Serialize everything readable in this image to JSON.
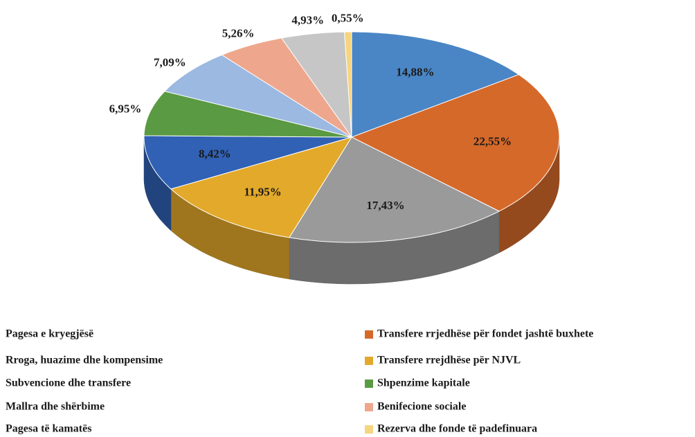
{
  "chart_data": {
    "type": "pie3d",
    "series": [
      {
        "name": "Pagesa  e kryegjësë",
        "color": "#4a86c5",
        "values": [
          14.88
        ],
        "value_labels": [
          "14,88%"
        ]
      },
      {
        "name": "Transfere rrjedhëse për fondet jashtë buxhete",
        "color": "#d5692a",
        "values": [
          22.55
        ],
        "value_labels": [
          "22,55%"
        ]
      },
      {
        "name": "Rroga, huazime dhe kompensime",
        "color": "#9a9a9a",
        "values": [
          17.43
        ],
        "value_labels": [
          "17,43%"
        ]
      },
      {
        "name": "Transfere rrejdhëse për NJVL",
        "color": "#e3a92b",
        "values": [
          11.95
        ],
        "value_labels": [
          "11,95%"
        ]
      },
      {
        "name": "Subvencione dhe transfere",
        "color": "#3061b4",
        "values": [
          8.42
        ],
        "value_labels": [
          "8,42%"
        ]
      },
      {
        "name": "Shpenzime kapitale",
        "color": "#5a9a42",
        "values": [
          6.95
        ],
        "value_labels": [
          "6,95%"
        ]
      },
      {
        "name": "Mallra dhe shërbime",
        "color": "#9bb9e1",
        "values": [
          7.09
        ],
        "value_labels": [
          "7,09%"
        ]
      },
      {
        "name": "Benifecione sociale",
        "color": "#eea78d",
        "values": [
          5.26
        ],
        "value_labels": [
          "5,26%"
        ]
      },
      {
        "name": "Pagesa të kamatës",
        "color": "#c6c6c6",
        "values": [
          4.93
        ],
        "value_labels": [
          "4,93%"
        ]
      },
      {
        "name": "Rezerva dhe fonde të padefinuara",
        "color": "#f7d47f",
        "values": [
          0.55
        ],
        "value_labels": [
          "0,55%"
        ]
      }
    ]
  }
}
